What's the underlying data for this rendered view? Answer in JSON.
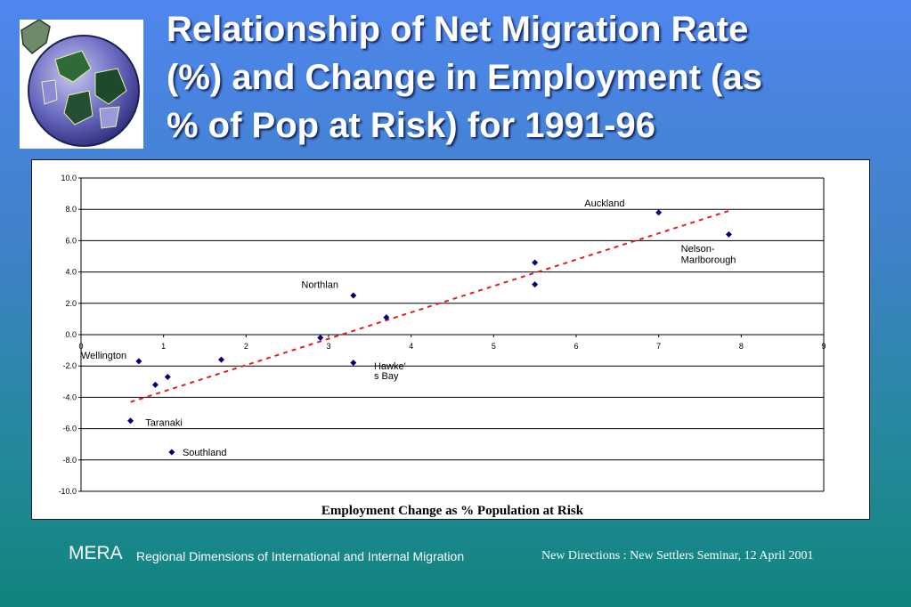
{
  "slide": {
    "title_lines": [
      "Relationship of Net Migration Rate",
      "(%) and Change in Employment (as",
      "% of Pop at Risk) for 1991-96"
    ],
    "logo_icon": "globe-puzzle-icon",
    "colors": {
      "background_top": "#4f86ee",
      "background_bottom": "#10847d",
      "marker": "#00007a",
      "trendline": "#e02020"
    }
  },
  "footer": {
    "org": "MERA",
    "subtitle": "Regional Dimensions of International and Internal Migration",
    "event": "New Directions : New Settlers Seminar, 12 April 2001"
  },
  "chart_data": {
    "type": "scatter",
    "xlabel": "Employment Change as % Population at Risk",
    "ylabel": "",
    "xlim": [
      0,
      9
    ],
    "ylim": [
      -10,
      10
    ],
    "x_ticks": [
      "0",
      "1",
      "2",
      "3",
      "4",
      "5",
      "6",
      "7",
      "8",
      "9"
    ],
    "y_ticks": [
      "-10.0",
      "-8.0",
      "-6.0",
      "-4.0",
      "-2.0",
      "0.0",
      "2.0",
      "4.0",
      "6.0",
      "8.0",
      "10.0"
    ],
    "grid": "horizontal",
    "legend": "none",
    "points": [
      {
        "x": 0.6,
        "y": -5.5,
        "label": ""
      },
      {
        "x": 0.7,
        "y": -1.7,
        "label": ""
      },
      {
        "x": 0.9,
        "y": -3.2,
        "label": ""
      },
      {
        "x": 1.05,
        "y": -2.7,
        "label": ""
      },
      {
        "x": 1.1,
        "y": -7.5,
        "label": ""
      },
      {
        "x": 1.7,
        "y": -1.6,
        "label": ""
      },
      {
        "x": 2.9,
        "y": -0.2,
        "label": ""
      },
      {
        "x": 3.3,
        "y": 2.5,
        "label": ""
      },
      {
        "x": 3.3,
        "y": -1.8,
        "label": ""
      },
      {
        "x": 3.7,
        "y": 1.1,
        "label": ""
      },
      {
        "x": 5.5,
        "y": 4.6,
        "label": ""
      },
      {
        "x": 5.5,
        "y": 3.2,
        "label": ""
      },
      {
        "x": 7.0,
        "y": 7.8,
        "label": ""
      },
      {
        "x": 7.85,
        "y": 6.4,
        "label": ""
      }
    ],
    "annotations": [
      {
        "text": "Wellington",
        "x": 0.0,
        "y": -1.3
      },
      {
        "text": "Taranaki",
        "x": 0.78,
        "y": -5.6
      },
      {
        "text": "Southland",
        "x": 1.23,
        "y": -7.5
      },
      {
        "text": "Northlan",
        "x": 2.67,
        "y": 3.2
      },
      {
        "text": "Hawke'",
        "x": 3.55,
        "y": -2.0
      },
      {
        "text": "s Bay",
        "x": 3.55,
        "y": -2.6
      },
      {
        "text": "Auckland",
        "x": 6.1,
        "y": 8.4
      },
      {
        "text": "Nelson-",
        "x": 7.27,
        "y": 5.5
      },
      {
        "text": "Marlborough",
        "x": 7.27,
        "y": 4.8
      }
    ],
    "trendline": {
      "x": [
        0.6,
        7.85
      ],
      "y": [
        -4.3,
        7.9
      ]
    }
  }
}
